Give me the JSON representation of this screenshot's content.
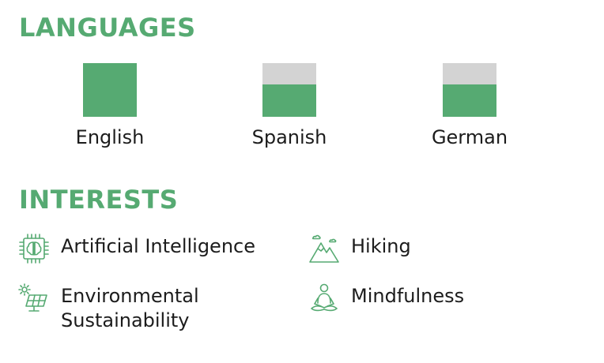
{
  "languages": {
    "title": "LANGUAGES",
    "items": [
      {
        "name": "English",
        "level": 1.0
      },
      {
        "name": "Spanish",
        "level": 0.6
      },
      {
        "name": "German",
        "level": 0.6
      }
    ]
  },
  "interests": {
    "title": "INTERESTS",
    "items": [
      {
        "label": "Artificial Intelligence",
        "icon": "ai-chip-icon"
      },
      {
        "label": "Hiking",
        "icon": "mountain-icon"
      },
      {
        "label": "Environmental\nSustainability",
        "icon": "solar-panel-icon"
      },
      {
        "label": "Mindfulness",
        "icon": "meditation-icon"
      }
    ]
  },
  "colors": {
    "accent": "#56aa72",
    "empty": "#d3d3d3"
  }
}
